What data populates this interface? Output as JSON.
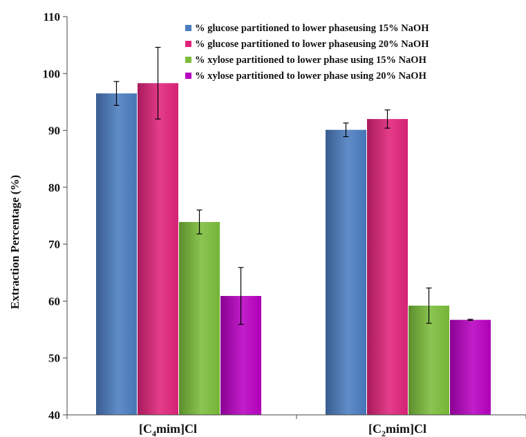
{
  "chart_data": {
    "type": "bar",
    "categories": [
      "[C4mim]Cl",
      "[C2mim]Cl"
    ],
    "category_labels": [
      {
        "prefix": "[C",
        "sub": "4",
        "suffix": "mim]Cl"
      },
      {
        "prefix": "[C",
        "sub": "2",
        "suffix": "mim]Cl"
      }
    ],
    "ylabel": "Extraction Percentage (%)",
    "xlabel": "",
    "ylim": [
      40,
      110
    ],
    "yticks": [
      40,
      50,
      60,
      70,
      80,
      90,
      100,
      110
    ],
    "grid": false,
    "legend_position": "top-right",
    "series": [
      {
        "name": "% glucose partitioned to lower phaseusing 15% NaOH",
        "color": "#4a7cc0",
        "values": [
          96.5,
          90.1
        ],
        "errors": [
          2.1,
          1.2
        ]
      },
      {
        "name": "% glucose partitioned to lower phaseusing 20% NaOH",
        "color": "#e0237a",
        "values": [
          98.3,
          92.0
        ],
        "errors": [
          6.3,
          1.6
        ]
      },
      {
        "name": "% xylose partitioned to lower phase using 15% NaOH",
        "color": "#7bbd3a",
        "values": [
          73.9,
          59.2
        ],
        "errors": [
          2.1,
          3.1
        ]
      },
      {
        "name": "% xylose partitioned to lower phase using 20% NaOH",
        "color": "#b800c2",
        "values": [
          60.9,
          56.7
        ],
        "errors": [
          5.0,
          0.1
        ]
      }
    ]
  }
}
